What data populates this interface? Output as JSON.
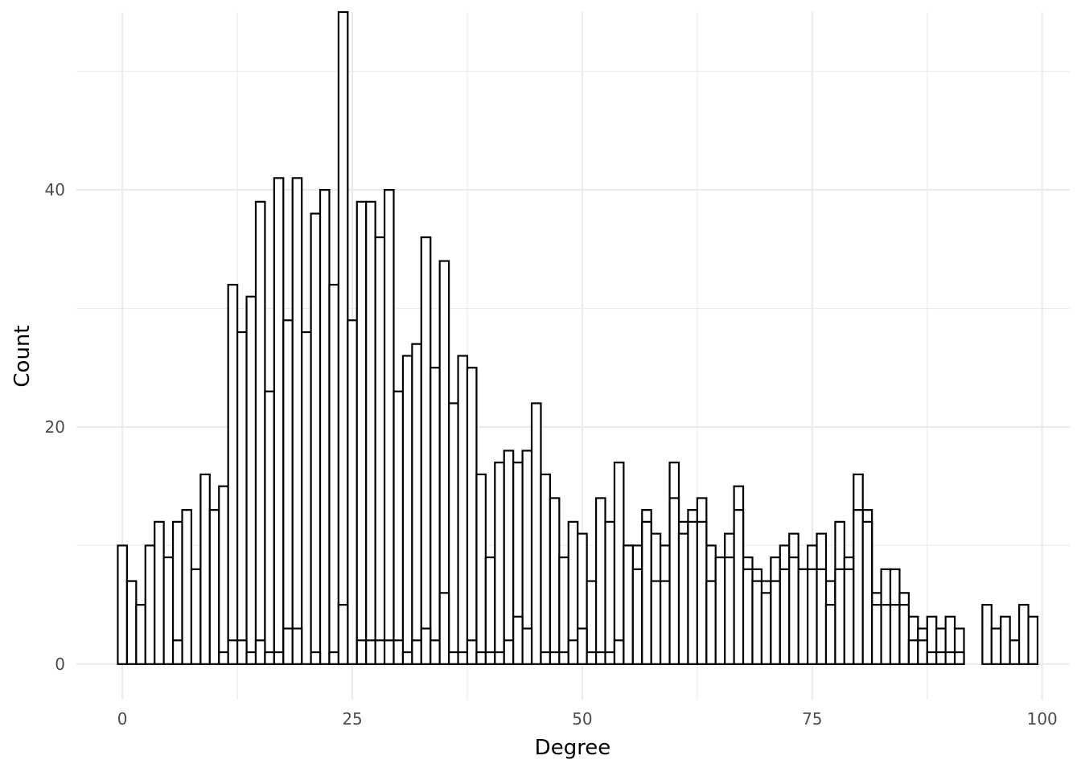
{
  "chart_data": {
    "type": "bar",
    "title": "",
    "xlabel": "Degree",
    "ylabel": "Count",
    "xlim": [
      -5,
      103
    ],
    "ylim": [
      -3,
      55
    ],
    "x_ticks": [
      0,
      25,
      50,
      75,
      100
    ],
    "y_ticks": [
      0,
      20,
      40
    ],
    "grid": true,
    "bin_width": 1,
    "series": [
      {
        "x": [
          0,
          1,
          2,
          3,
          4,
          5,
          6,
          7,
          8,
          9,
          10,
          11,
          12,
          13,
          14,
          15,
          16,
          17,
          18,
          19,
          20,
          21,
          22,
          23,
          24,
          25,
          26,
          27,
          28,
          29,
          30,
          31,
          32,
          33,
          34,
          35,
          36,
          37,
          38,
          39,
          40,
          41,
          42,
          43,
          44,
          45,
          46,
          47,
          48,
          49,
          50,
          51,
          52,
          53,
          54,
          55,
          56,
          57,
          58,
          59,
          60,
          61,
          62,
          63,
          64,
          65,
          66,
          67,
          68,
          69,
          70,
          71,
          72,
          73,
          74,
          75,
          76,
          77,
          78,
          79,
          80,
          81,
          82,
          83,
          84,
          85,
          86,
          87,
          88,
          89,
          90,
          91,
          94,
          95,
          96,
          97,
          98,
          99
        ],
        "values": [
          10,
          7,
          5,
          10,
          12,
          9,
          12,
          13,
          8,
          16,
          13,
          15,
          32,
          28,
          31,
          39,
          23,
          41,
          29,
          41,
          28,
          38,
          40,
          32,
          55,
          29,
          39,
          39,
          36,
          40,
          23,
          26,
          27,
          36,
          25,
          34,
          22,
          26,
          25,
          16,
          9,
          17,
          18,
          17,
          18,
          22,
          16,
          14,
          9,
          12,
          11,
          7,
          14,
          12,
          17,
          10,
          10,
          13,
          11,
          10,
          17,
          12,
          13,
          14,
          10,
          9,
          11,
          15,
          9,
          8,
          7,
          9,
          10,
          11,
          8,
          10,
          11,
          7,
          12,
          9,
          16,
          13,
          6,
          8,
          8,
          6,
          4,
          3,
          4,
          3,
          4,
          3,
          5,
          3,
          4,
          2,
          5,
          4
        ]
      },
      {
        "x": [
          6,
          11,
          12,
          13,
          14,
          15,
          16,
          17,
          18,
          19,
          20,
          21,
          22,
          23,
          24,
          25,
          26,
          27,
          28,
          29,
          30,
          31,
          32,
          33,
          34,
          35,
          36,
          37,
          38,
          39,
          40,
          41,
          42,
          43,
          44,
          45,
          46,
          47,
          48,
          49,
          50,
          51,
          52,
          53,
          54,
          55,
          56,
          57,
          58,
          59,
          60,
          61,
          62,
          63,
          64,
          65,
          66,
          67,
          68,
          69,
          70,
          71,
          72,
          73,
          74,
          75,
          76,
          77,
          78,
          79,
          80,
          81,
          82,
          83,
          84,
          85,
          86,
          87,
          88,
          89,
          90,
          91
        ],
        "values": [
          2,
          1,
          2,
          2,
          1,
          2,
          1,
          1,
          3,
          3,
          0,
          1,
          0,
          1,
          5,
          0,
          2,
          2,
          2,
          2,
          2,
          1,
          2,
          3,
          2,
          6,
          1,
          1,
          2,
          1,
          1,
          1,
          2,
          4,
          3,
          0,
          1,
          1,
          1,
          2,
          3,
          1,
          1,
          1,
          2,
          10,
          8,
          12,
          7,
          7,
          14,
          11,
          12,
          12,
          7,
          9,
          9,
          13,
          8,
          7,
          6,
          7,
          8,
          9,
          8,
          8,
          8,
          5,
          8,
          8,
          13,
          12,
          5,
          5,
          5,
          5,
          2,
          2,
          1,
          1,
          1,
          1
        ]
      }
    ]
  }
}
